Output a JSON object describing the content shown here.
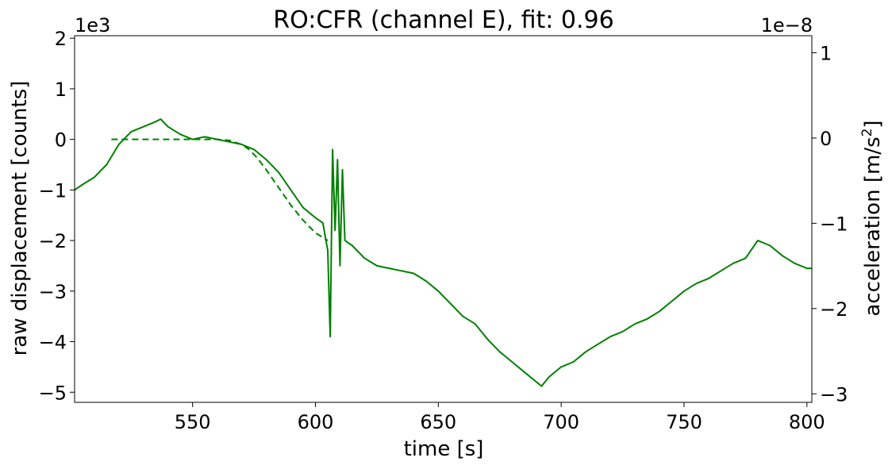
{
  "chart_data": {
    "type": "line",
    "title": "RO:CFR  (channel E), fit: 0.96",
    "xlabel": "time [s]",
    "ylabel_left": "raw displacement [counts]",
    "ylabel_right_prefix": "acceleration [m/s",
    "ylabel_right_sup": "2",
    "ylabel_right_suffix": "]",
    "left_axis_offset_label": "1e3",
    "right_axis_offset_label": "1e−8",
    "xlim": [
      502,
      802
    ],
    "ylim_left": [
      -5.2,
      2.05
    ],
    "ylim_right": [
      -3.1,
      1.2
    ],
    "x_ticks": [
      550,
      600,
      650,
      700,
      750,
      800
    ],
    "x_tick_labels": [
      "550",
      "600",
      "650",
      "700",
      "750",
      "800"
    ],
    "y_left_ticks": [
      -5,
      -4,
      -3,
      -2,
      -1,
      0,
      1,
      2
    ],
    "y_left_tick_labels": [
      "−5",
      "−4",
      "−3",
      "−2",
      "−1",
      "0",
      "1",
      "2"
    ],
    "y_right_ticks": [
      -3,
      -2,
      -1,
      0,
      1
    ],
    "y_right_tick_labels": [
      "−3",
      "−2",
      "−1",
      "0",
      "1"
    ],
    "grid": false,
    "line_color": "#008000",
    "series": [
      {
        "style": "solid",
        "x": [
          502,
          505,
          510,
          515,
          520,
          525,
          530,
          535,
          537,
          540,
          545,
          550,
          555,
          560,
          565,
          570,
          575,
          580,
          585,
          590,
          595,
          600,
          603,
          605,
          606,
          607,
          608,
          609,
          610,
          611,
          612,
          615,
          620,
          625,
          630,
          635,
          640,
          645,
          650,
          655,
          660,
          665,
          670,
          675,
          680,
          685,
          690,
          692,
          695,
          700,
          705,
          710,
          715,
          720,
          725,
          730,
          735,
          740,
          745,
          750,
          755,
          760,
          765,
          770,
          775,
          780,
          785,
          790,
          795,
          800,
          802
        ],
        "y": [
          -1.0,
          -0.9,
          -0.75,
          -0.5,
          -0.1,
          0.15,
          0.25,
          0.35,
          0.4,
          0.25,
          0.1,
          0.0,
          0.05,
          0.0,
          -0.05,
          -0.1,
          -0.2,
          -0.4,
          -0.65,
          -1.0,
          -1.35,
          -1.55,
          -1.65,
          -2.2,
          -3.9,
          -0.2,
          -1.8,
          -0.4,
          -2.5,
          -0.6,
          -2.0,
          -2.1,
          -2.35,
          -2.5,
          -2.55,
          -2.6,
          -2.65,
          -2.8,
          -3.0,
          -3.25,
          -3.5,
          -3.65,
          -3.95,
          -4.2,
          -4.4,
          -4.6,
          -4.8,
          -4.88,
          -4.7,
          -4.5,
          -4.4,
          -4.2,
          -4.05,
          -3.9,
          -3.8,
          -3.65,
          -3.55,
          -3.4,
          -3.2,
          -3.0,
          -2.85,
          -2.75,
          -2.6,
          -2.45,
          -2.35,
          -2.0,
          -2.1,
          -2.3,
          -2.45,
          -2.55,
          -2.55
        ]
      },
      {
        "style": "dashed",
        "x": [
          517,
          525,
          530,
          540,
          550,
          560,
          565,
          570,
          573,
          576,
          580,
          585,
          590,
          595,
          600,
          605
        ],
        "y": [
          0.0,
          0.0,
          0.0,
          0.0,
          0.0,
          0.0,
          -0.02,
          -0.1,
          -0.2,
          -0.35,
          -0.6,
          -0.95,
          -1.3,
          -1.6,
          -1.85,
          -2.0
        ]
      }
    ]
  }
}
